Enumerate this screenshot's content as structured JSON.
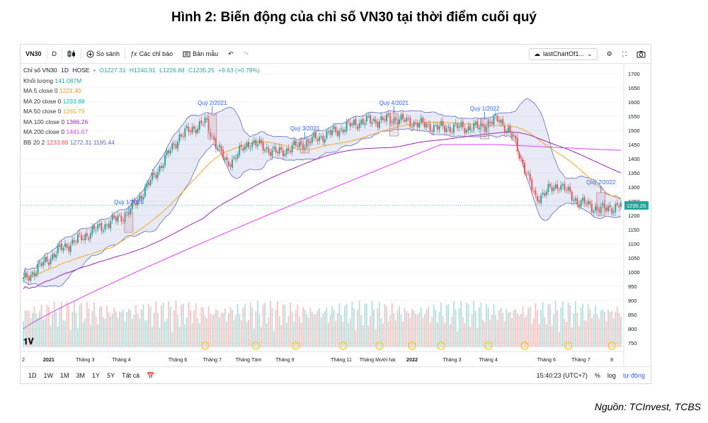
{
  "figure_title": "Hình 2: Biến động của chỉ số VN30 tại thời điểm cuối quý",
  "source": "Nguồn: TCInvest, TCBS",
  "toolbar": {
    "symbol": "VN30",
    "interval": "D",
    "compare": "So sánh",
    "indicators": "Các chỉ báo",
    "templates": "Bản mẫu",
    "layout_name": "lastChartOf1..."
  },
  "legend": {
    "title": "Chỉ số VN30",
    "interval": "1D",
    "exchange": "HOSE",
    "ohlc": {
      "o": "O1227.31",
      "h": "H1240.91",
      "l": "L1226.88",
      "c": "C1235.25",
      "chg": "+9.63 (+0.79%)"
    },
    "volume_label": "Khối lượng",
    "volume_value": "141.087M",
    "ma5_label": "MA 5 close 0",
    "ma5_value": "1221.40",
    "ma20_label": "MA 20 close 0",
    "ma20_value": "1233.88",
    "ma50_label": "MA 50 close 0",
    "ma50_value": "1265.79",
    "ma100_label": "MA 100 close 0",
    "ma100_value": "1366.26",
    "ma200_label": "MA 200 close 0",
    "ma200_value": "1441.67",
    "bb_label": "BB 20 2",
    "bb_mid": "1233.88",
    "bb_up": "1272.31",
    "bb_low": "1195.44"
  },
  "bottom_bar": {
    "ranges": [
      "1D",
      "1W",
      "1M",
      "3M",
      "1Y",
      "5Y",
      "Tất cả"
    ],
    "time": "15:40:23 (UTC+7)",
    "percent": "%",
    "log": "log",
    "auto": "tự động"
  },
  "colors": {
    "up": "#26a69a",
    "down": "#ef5350",
    "ma5": "#f7931a",
    "ma20": "#00bcd4",
    "ma50": "#f5a623",
    "ma100": "#9c27b0",
    "ma200": "#e040fb",
    "bb": "#5c6bc0",
    "bb_fill": "rgba(92,107,192,0.14)",
    "last_price": "#26a69a",
    "annotation": "#2962ff"
  },
  "chart_data": {
    "type": "candlestick",
    "y_ticks": [
      750,
      800,
      850,
      900,
      950,
      1000,
      1050,
      1100,
      1150,
      1200,
      1250,
      1300,
      1350,
      1400,
      1450,
      1500,
      1550,
      1600,
      1650,
      1700
    ],
    "ylim": [
      735,
      1725
    ],
    "last_price": "1235.25",
    "x_labels": [
      "2",
      "2021",
      "Tháng 3",
      "Tháng 4",
      "Tháng 6",
      "Tháng 7",
      "Tháng Tám",
      "Tháng 9",
      "Tháng 11",
      "Tháng Mười hai",
      "2022",
      "Tháng 3",
      "Tháng 4",
      "Tháng 6",
      "Tháng 7",
      "8"
    ],
    "x_label_index": [
      0,
      14,
      34,
      54,
      85,
      104,
      124,
      144,
      175,
      195,
      214,
      236,
      256,
      288,
      307,
      324
    ],
    "n_bars": 330,
    "close_keypoints": [
      [
        0,
        970
      ],
      [
        20,
        1080
      ],
      [
        40,
        1150
      ],
      [
        58,
        1210
      ],
      [
        70,
        1320
      ],
      [
        86,
        1480
      ],
      [
        100,
        1530
      ],
      [
        112,
        1380
      ],
      [
        125,
        1460
      ],
      [
        140,
        1420
      ],
      [
        165,
        1480
      ],
      [
        185,
        1530
      ],
      [
        205,
        1540
      ],
      [
        228,
        1510
      ],
      [
        250,
        1510
      ],
      [
        262,
        1540
      ],
      [
        270,
        1470
      ],
      [
        282,
        1260
      ],
      [
        295,
        1310
      ],
      [
        305,
        1250
      ],
      [
        318,
        1220
      ],
      [
        329,
        1235
      ]
    ],
    "annotations": [
      {
        "label": "Quý 1/2021",
        "bar": 58,
        "low": 1140,
        "high": 1210
      },
      {
        "label": "Quý 2/2021",
        "bar": 104,
        "low": 1470,
        "high": 1560
      },
      {
        "label": "Quý 3/2021",
        "bar": 155,
        "low": 1420,
        "high": 1470
      },
      {
        "label": "Quý 4/2021",
        "bar": 204,
        "low": 1480,
        "high": 1560
      },
      {
        "label": "Quý 1/2022",
        "bar": 254,
        "low": 1470,
        "high": 1540
      },
      {
        "label": "Quý 2/2022",
        "bar": 318,
        "low": 1200,
        "high": 1280
      }
    ]
  }
}
